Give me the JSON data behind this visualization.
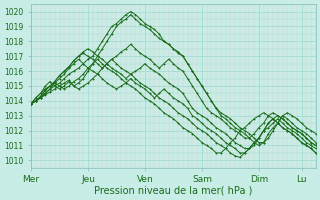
{
  "title": "Pression niveau de la mer( hPa )",
  "ylabel_vals": [
    1010,
    1011,
    1012,
    1013,
    1014,
    1015,
    1016,
    1017,
    1018,
    1019,
    1020
  ],
  "ylim": [
    1009.5,
    1020.5
  ],
  "xlim": [
    0,
    120
  ],
  "xtick_positions": [
    0,
    24,
    48,
    72,
    96,
    114
  ],
  "xtick_labels": [
    "Mer",
    "Jeu",
    "Ven",
    "Sam",
    "Dim",
    "Lu"
  ],
  "background_color": "#c8ede6",
  "major_grid_color": "#9fd8d0",
  "minor_grid_color": "#e8c8c8",
  "line_color": "#1a6b1a",
  "series": [
    {
      "x": [
        0,
        2,
        4,
        6,
        8,
        10,
        12,
        14,
        16,
        18,
        20,
        22,
        24,
        26,
        28,
        30,
        32,
        34,
        36,
        38,
        40,
        42,
        44,
        46,
        48,
        50,
        52,
        54,
        56,
        58,
        60,
        62,
        64,
        66,
        68,
        70,
        72,
        74,
        76,
        78,
        80,
        82,
        84,
        86,
        88,
        90,
        92,
        94,
        96,
        98,
        100,
        102,
        104,
        106,
        108,
        110,
        112,
        114,
        116,
        118,
        120
      ],
      "y": [
        1013.8,
        1014.0,
        1014.2,
        1014.5,
        1014.8,
        1015.0,
        1015.2,
        1015.5,
        1015.8,
        1016.0,
        1016.2,
        1016.5,
        1016.8,
        1017.0,
        1017.5,
        1018.0,
        1018.5,
        1019.0,
        1019.2,
        1019.5,
        1019.8,
        1020.0,
        1019.8,
        1019.5,
        1019.2,
        1019.0,
        1018.8,
        1018.5,
        1018.0,
        1017.8,
        1017.5,
        1017.2,
        1017.0,
        1016.5,
        1016.0,
        1015.5,
        1015.0,
        1014.5,
        1014.0,
        1013.5,
        1013.2,
        1013.0,
        1012.8,
        1012.5,
        1012.2,
        1012.0,
        1011.8,
        1011.5,
        1011.2,
        1011.2,
        1011.5,
        1012.0,
        1012.5,
        1013.0,
        1013.2,
        1013.0,
        1012.8,
        1012.5,
        1012.2,
        1012.0,
        1011.8
      ]
    },
    {
      "x": [
        0,
        2,
        4,
        6,
        8,
        10,
        12,
        14,
        16,
        18,
        20,
        22,
        24,
        26,
        28,
        30,
        32,
        34,
        36,
        38,
        40,
        42,
        44,
        46,
        48,
        50,
        52,
        54,
        56,
        58,
        60,
        62,
        64,
        66,
        68,
        70,
        72,
        74,
        76,
        78,
        80,
        82,
        84,
        86,
        88,
        90,
        92,
        94,
        96,
        98,
        100,
        102,
        104,
        106,
        108,
        110,
        112,
        114,
        116,
        118,
        120
      ],
      "y": [
        1013.8,
        1014.0,
        1014.3,
        1014.7,
        1015.0,
        1015.3,
        1015.7,
        1016.0,
        1016.3,
        1016.7,
        1017.0,
        1017.2,
        1017.0,
        1016.8,
        1016.5,
        1016.2,
        1016.5,
        1016.8,
        1017.0,
        1017.3,
        1017.5,
        1017.8,
        1017.5,
        1017.2,
        1017.0,
        1016.8,
        1016.5,
        1016.2,
        1016.5,
        1016.8,
        1016.5,
        1016.2,
        1016.0,
        1015.5,
        1015.0,
        1014.5,
        1014.0,
        1013.5,
        1013.2,
        1013.0,
        1012.8,
        1012.5,
        1012.2,
        1012.0,
        1011.8,
        1011.5,
        1011.5,
        1011.8,
        1012.2,
        1012.5,
        1013.0,
        1013.2,
        1013.0,
        1012.8,
        1012.5,
        1012.2,
        1012.0,
        1011.8,
        1011.5,
        1011.2,
        1011.0
      ]
    },
    {
      "x": [
        0,
        2,
        4,
        6,
        8,
        10,
        12,
        14,
        16,
        18,
        20,
        22,
        24,
        26,
        28,
        30,
        32,
        34,
        36,
        38,
        40,
        42,
        44,
        46,
        48,
        50,
        52,
        54,
        56,
        58,
        60,
        62,
        64,
        66,
        68,
        70,
        72,
        74,
        76,
        78,
        80,
        82,
        84,
        86,
        88,
        90,
        92,
        94,
        96,
        98,
        100,
        102,
        104,
        106,
        108,
        110,
        112,
        114,
        116,
        118,
        120
      ],
      "y": [
        1013.8,
        1014.2,
        1014.5,
        1015.0,
        1015.3,
        1015.0,
        1014.8,
        1015.0,
        1015.3,
        1015.0,
        1015.2,
        1015.5,
        1016.0,
        1016.5,
        1017.0,
        1017.5,
        1018.0,
        1018.5,
        1019.0,
        1019.3,
        1019.5,
        1019.8,
        1019.5,
        1019.2,
        1019.0,
        1018.8,
        1018.5,
        1018.2,
        1018.0,
        1017.8,
        1017.5,
        1017.3,
        1017.0,
        1016.5,
        1016.0,
        1015.5,
        1015.0,
        1014.5,
        1014.0,
        1013.5,
        1013.0,
        1012.8,
        1012.5,
        1012.2,
        1012.0,
        1011.8,
        1011.5,
        1011.2,
        1011.0,
        1011.2,
        1011.8,
        1012.2,
        1012.5,
        1013.0,
        1012.8,
        1012.5,
        1012.2,
        1012.0,
        1011.8,
        1011.5,
        1011.2
      ]
    },
    {
      "x": [
        0,
        2,
        4,
        6,
        8,
        10,
        12,
        14,
        16,
        18,
        20,
        22,
        24,
        26,
        28,
        30,
        32,
        34,
        36,
        38,
        40,
        42,
        44,
        46,
        48,
        50,
        52,
        54,
        56,
        58,
        60,
        62,
        64,
        66,
        68,
        70,
        72,
        74,
        76,
        78,
        80,
        82,
        84,
        86,
        88,
        90,
        92,
        94,
        96,
        98,
        100,
        102,
        104,
        106,
        108,
        110,
        112,
        114,
        116,
        118,
        120
      ],
      "y": [
        1013.8,
        1014.0,
        1014.3,
        1014.7,
        1015.0,
        1015.3,
        1015.7,
        1016.0,
        1016.3,
        1016.7,
        1017.0,
        1017.3,
        1017.5,
        1017.3,
        1017.0,
        1016.8,
        1016.5,
        1016.2,
        1016.0,
        1015.8,
        1015.5,
        1015.8,
        1016.0,
        1016.2,
        1016.5,
        1016.2,
        1016.0,
        1015.8,
        1015.5,
        1015.2,
        1015.0,
        1014.8,
        1014.5,
        1014.0,
        1013.5,
        1013.2,
        1013.0,
        1012.8,
        1012.5,
        1012.2,
        1012.0,
        1011.8,
        1011.5,
        1011.2,
        1011.0,
        1010.8,
        1010.8,
        1011.0,
        1011.5,
        1012.0,
        1012.5,
        1012.8,
        1013.0,
        1012.8,
        1012.5,
        1012.2,
        1012.0,
        1011.8,
        1011.5,
        1011.2,
        1011.0
      ]
    },
    {
      "x": [
        0,
        2,
        4,
        6,
        8,
        10,
        12,
        14,
        16,
        18,
        20,
        22,
        24,
        26,
        28,
        30,
        32,
        34,
        36,
        38,
        40,
        42,
        44,
        46,
        48,
        50,
        52,
        54,
        56,
        58,
        60,
        62,
        64,
        66,
        68,
        70,
        72,
        74,
        76,
        78,
        80,
        82,
        84,
        86,
        88,
        90,
        92,
        94,
        96,
        98,
        100,
        102,
        104,
        106,
        108,
        110,
        112,
        114,
        116,
        118,
        120
      ],
      "y": [
        1013.8,
        1014.0,
        1014.2,
        1014.5,
        1014.8,
        1015.2,
        1015.5,
        1015.8,
        1016.2,
        1016.5,
        1016.8,
        1016.5,
        1016.2,
        1016.0,
        1015.8,
        1015.5,
        1015.2,
        1015.0,
        1014.8,
        1015.0,
        1015.2,
        1015.5,
        1015.2,
        1015.0,
        1014.8,
        1014.5,
        1014.2,
        1014.5,
        1014.8,
        1014.5,
        1014.2,
        1014.0,
        1013.8,
        1013.5,
        1013.0,
        1012.8,
        1012.5,
        1012.2,
        1012.0,
        1011.8,
        1011.5,
        1011.2,
        1011.0,
        1010.8,
        1010.5,
        1010.5,
        1010.8,
        1011.2,
        1011.5,
        1012.0,
        1012.5,
        1012.8,
        1012.5,
        1012.2,
        1012.0,
        1011.8,
        1011.5,
        1011.2,
        1011.0,
        1010.8,
        1010.5
      ]
    },
    {
      "x": [
        0,
        2,
        4,
        6,
        8,
        10,
        12,
        14,
        16,
        18,
        20,
        22,
        24,
        26,
        28,
        30,
        32,
        34,
        36,
        38,
        40,
        42,
        44,
        46,
        48,
        50,
        52,
        54,
        56,
        58,
        60,
        62,
        64,
        66,
        68,
        70,
        72,
        74,
        76,
        78,
        80,
        82,
        84,
        86,
        88,
        90,
        92,
        94,
        96,
        98,
        100,
        102,
        104,
        106,
        108,
        110,
        112,
        114,
        116,
        118,
        120
      ],
      "y": [
        1013.8,
        1014.2,
        1014.5,
        1014.8,
        1015.0,
        1015.2,
        1015.0,
        1014.8,
        1015.0,
        1015.3,
        1015.5,
        1015.8,
        1016.2,
        1016.5,
        1016.8,
        1016.5,
        1016.2,
        1016.0,
        1015.8,
        1015.5,
        1015.2,
        1015.0,
        1014.8,
        1014.5,
        1014.2,
        1014.0,
        1013.8,
        1013.5,
        1013.2,
        1013.0,
        1012.8,
        1012.5,
        1012.2,
        1012.0,
        1011.8,
        1011.5,
        1011.2,
        1011.0,
        1010.8,
        1010.5,
        1010.5,
        1010.8,
        1011.2,
        1011.5,
        1012.0,
        1012.2,
        1012.5,
        1012.8,
        1013.0,
        1013.2,
        1013.0,
        1012.8,
        1012.5,
        1012.2,
        1012.0,
        1011.8,
        1011.5,
        1011.2,
        1011.0,
        1010.8,
        1010.5
      ]
    },
    {
      "x": [
        0,
        2,
        4,
        6,
        8,
        10,
        12,
        14,
        16,
        18,
        20,
        22,
        24,
        26,
        28,
        30,
        32,
        34,
        36,
        38,
        40,
        42,
        44,
        46,
        48,
        50,
        52,
        54,
        56,
        58,
        60,
        62,
        64,
        66,
        68,
        70,
        72,
        74,
        76,
        78,
        80,
        82,
        84,
        86,
        88,
        90,
        92,
        94,
        96,
        98,
        100,
        102,
        104,
        106,
        108,
        110,
        112,
        114,
        116,
        118,
        120
      ],
      "y": [
        1013.8,
        1014.0,
        1014.2,
        1014.4,
        1014.6,
        1014.8,
        1015.0,
        1015.2,
        1015.4,
        1015.0,
        1014.8,
        1015.0,
        1015.2,
        1015.5,
        1015.8,
        1016.2,
        1016.5,
        1016.8,
        1016.5,
        1016.2,
        1016.0,
        1015.8,
        1015.5,
        1015.2,
        1015.0,
        1014.8,
        1014.5,
        1014.2,
        1014.0,
        1013.8,
        1013.5,
        1013.2,
        1013.0,
        1012.8,
        1012.5,
        1012.2,
        1012.0,
        1011.8,
        1011.5,
        1011.2,
        1011.0,
        1010.8,
        1010.5,
        1010.3,
        1010.2,
        1010.5,
        1010.8,
        1011.2,
        1011.5,
        1012.0,
        1012.2,
        1012.5,
        1012.8,
        1012.5,
        1012.2,
        1012.0,
        1011.8,
        1011.5,
        1011.2,
        1011.0,
        1010.8
      ]
    }
  ]
}
